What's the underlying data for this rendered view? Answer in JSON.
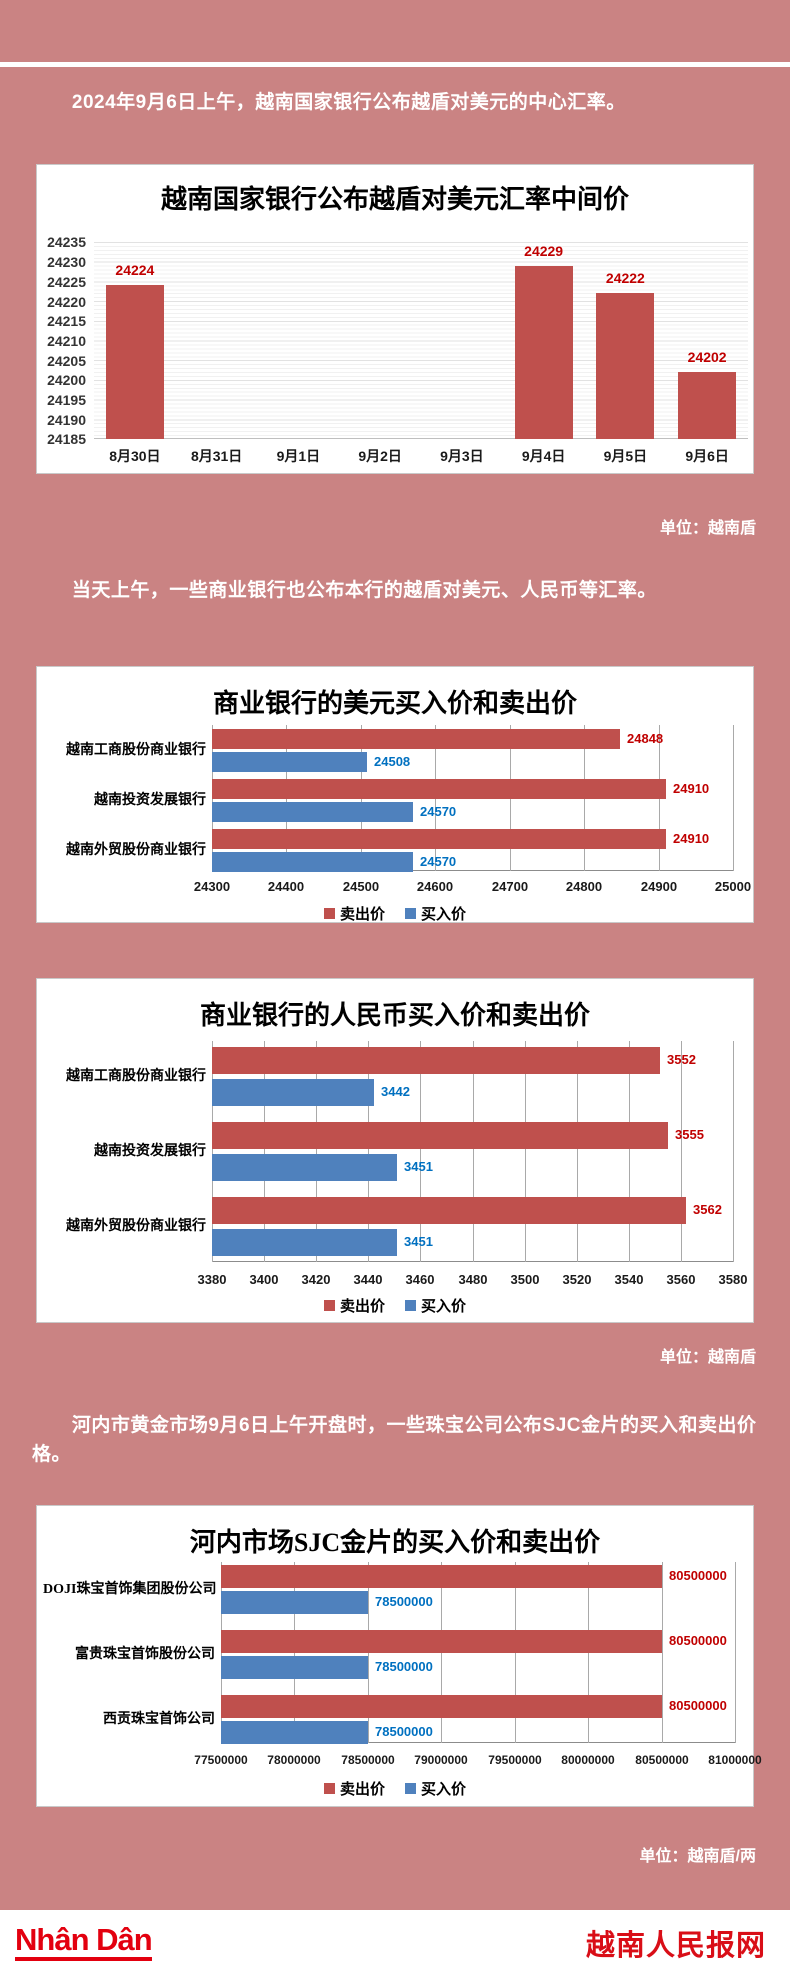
{
  "background_color": "#ca8383",
  "paragraphs": [
    "2024年9月6日上午，越南国家银行公布越盾对美元的中心汇率。",
    "当天上午，一些商业银行也公布本行的越盾对美元、人民币等汇率。",
    "河内市黄金市场9月6日上午开盘时，一些珠宝公司公布SJC金片的买入和卖出价格。"
  ],
  "captions": [
    "单位：越南盾",
    "单位：越南盾",
    "单位：越南盾/两"
  ],
  "footer": {
    "logo_text": "Nhân Dân",
    "site_name": "越南人民报网",
    "brand_color": "#e3000f"
  },
  "colors": {
    "sell_bar": "#bf504d",
    "buy_bar": "#4f81bd",
    "sell_label": "#c00000",
    "buy_label": "#0070c0",
    "page_background": "#ca8383"
  },
  "chart_data": [
    {
      "type": "bar",
      "title": "越南国家银行公布越盾对美元汇率中间价",
      "categories": [
        "8月30日",
        "8月31日",
        "9月1日",
        "9月2日",
        "9月3日",
        "9月4日",
        "9月5日",
        "9月6日"
      ],
      "values": [
        24224,
        null,
        null,
        null,
        null,
        24229,
        24222,
        24202
      ],
      "ylim": [
        24185,
        24235
      ],
      "yticks": [
        24235,
        24230,
        24225,
        24220,
        24215,
        24210,
        24205,
        24200,
        24195,
        24190,
        24185
      ],
      "bar_color": "#bf504d",
      "label_color": "#c00000",
      "grid": true,
      "unit": "越南盾"
    },
    {
      "type": "bar-horizontal",
      "title": "商业银行的美元买入价和卖出价",
      "categories": [
        "越南工商股份商业银行",
        "越南投资发展银行",
        "越南外贸股份商业银行"
      ],
      "series": [
        {
          "name": "卖出价",
          "color": "#bf504d",
          "label_color": "#c00000",
          "values": [
            24848,
            24910,
            24910
          ]
        },
        {
          "name": "买入价",
          "color": "#4f81bd",
          "label_color": "#0070c0",
          "values": [
            24508,
            24570,
            24570
          ]
        }
      ],
      "xlim": [
        24300,
        25000
      ],
      "xticks": [
        24300,
        24400,
        24500,
        24600,
        24700,
        24800,
        24900,
        25000
      ],
      "legend_position": "bottom",
      "unit": "越南盾"
    },
    {
      "type": "bar-horizontal",
      "title": "商业银行的人民币买入价和卖出价",
      "categories": [
        "越南工商股份商业银行",
        "越南投资发展银行",
        "越南外贸股份商业银行"
      ],
      "series": [
        {
          "name": "卖出价",
          "color": "#bf504d",
          "label_color": "#c00000",
          "values": [
            3552,
            3555,
            3562
          ]
        },
        {
          "name": "买入价",
          "color": "#4f81bd",
          "label_color": "#0070c0",
          "values": [
            3442,
            3451,
            3451
          ]
        }
      ],
      "xlim": [
        3380,
        3580
      ],
      "xticks": [
        3380,
        3400,
        3420,
        3440,
        3460,
        3480,
        3500,
        3520,
        3540,
        3560,
        3580
      ],
      "legend_position": "bottom",
      "unit": "越南盾"
    },
    {
      "type": "bar-horizontal",
      "title": "河内市场SJC金片的买入价和卖出价",
      "categories": [
        "DOJI珠宝首饰集团股份公司",
        "富贵珠宝首饰股份公司",
        "西贡珠宝首饰公司"
      ],
      "series": [
        {
          "name": "卖出价",
          "color": "#bf504d",
          "label_color": "#c00000",
          "values": [
            80500000,
            80500000,
            80500000
          ]
        },
        {
          "name": "买入价",
          "color": "#4f81bd",
          "label_color": "#0070c0",
          "values": [
            78500000,
            78500000,
            78500000
          ]
        }
      ],
      "xlim": [
        77500000,
        81000000
      ],
      "xticks": [
        77500000,
        78000000,
        78500000,
        79000000,
        79500000,
        80000000,
        80500000,
        81000000
      ],
      "legend_position": "bottom",
      "unit": "越南盾/两"
    }
  ]
}
